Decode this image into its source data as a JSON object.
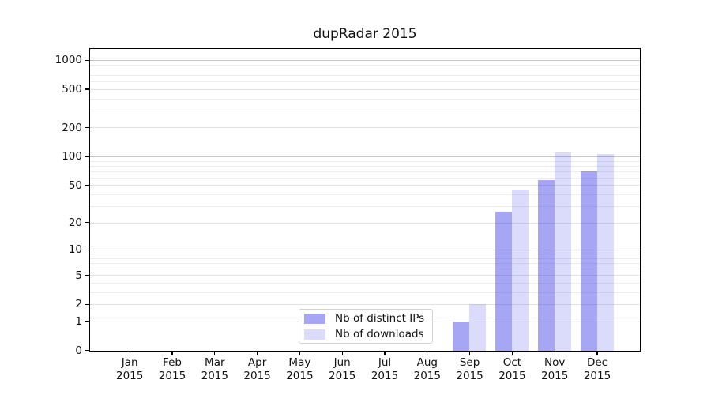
{
  "chart_data": {
    "type": "bar",
    "title": "dupRadar 2015",
    "scale": "log1p",
    "grid": true,
    "legend_position": "lower center",
    "categories": [
      "Jan",
      "Feb",
      "Mar",
      "Apr",
      "May",
      "Jun",
      "Jul",
      "Aug",
      "Sep",
      "Oct",
      "Nov",
      "Dec"
    ],
    "year_label": "2015",
    "yticks": [
      0,
      1,
      2,
      5,
      10,
      20,
      50,
      100,
      200,
      500,
      1000
    ],
    "ylim": [
      0,
      1300
    ],
    "series": [
      {
        "name": "Nb of distinct IPs",
        "color": "#3939e7",
        "fill_alpha": 0.45,
        "values": [
          0,
          0,
          0,
          0,
          0,
          0,
          0,
          0,
          1,
          26,
          57,
          70
        ]
      },
      {
        "name": "Nb of downloads",
        "color": "#3939e7",
        "fill_alpha": 0.18,
        "values": [
          0,
          0,
          0,
          0,
          0,
          0,
          0,
          0,
          2,
          45,
          110,
          105
        ]
      }
    ],
    "colors": {
      "grid_major": "#c6c6c6",
      "grid_mid": "#e2e2e6",
      "grid_minor": "#ededf0",
      "axis": "#000000",
      "text": "#111111",
      "background": "#ffffff"
    }
  }
}
